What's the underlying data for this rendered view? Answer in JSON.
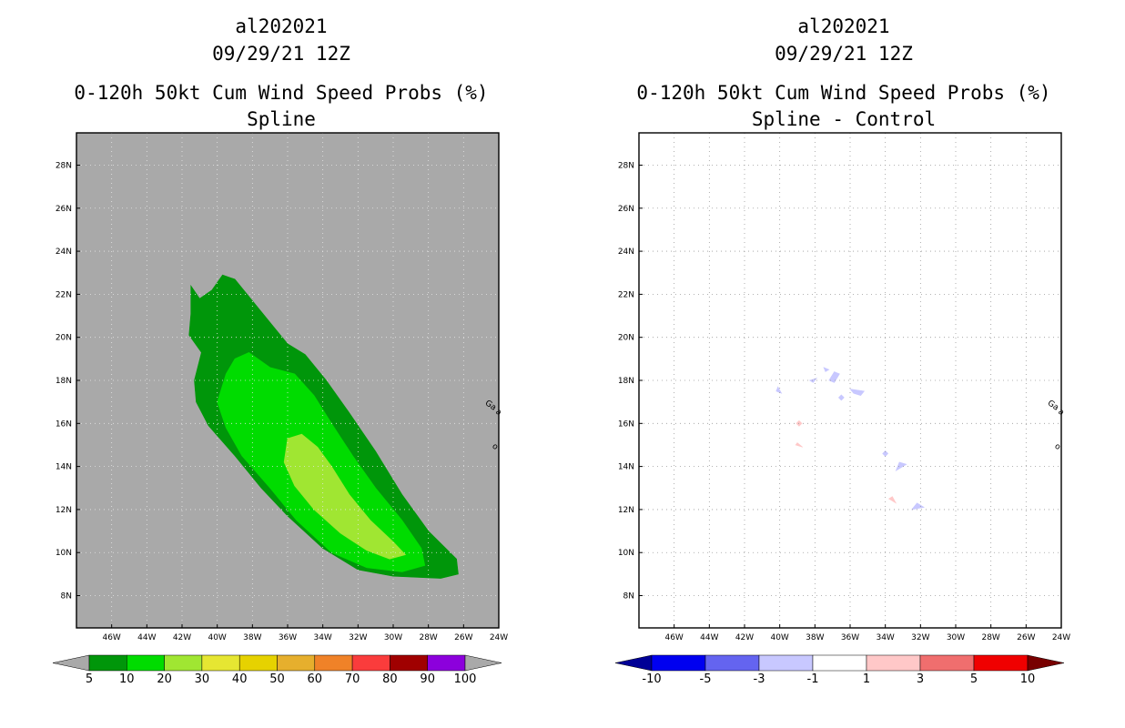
{
  "chart_data": [
    {
      "type": "heatmap",
      "title": [
        "al202021",
        "09/29/21 12Z",
        "0-120h 50kt Cum Wind Speed Probs (%)",
        "Spline"
      ],
      "xlabel": "",
      "ylabel": "",
      "xlim": [
        -48,
        -24
      ],
      "ylim": [
        6.5,
        29.5
      ],
      "x_ticks": [
        -46,
        -44,
        -42,
        -40,
        -38,
        -36,
        -34,
        -32,
        -30,
        -28,
        -26,
        -24
      ],
      "x_tick_labels": [
        "46W",
        "44W",
        "42W",
        "40W",
        "38W",
        "36W",
        "34W",
        "32W",
        "30W",
        "28W",
        "26W",
        "24W"
      ],
      "y_ticks": [
        8,
        10,
        12,
        14,
        16,
        18,
        20,
        22,
        24,
        26,
        28
      ],
      "y_tick_labels": [
        "8N",
        "10N",
        "12N",
        "14N",
        "16N",
        "18N",
        "20N",
        "22N",
        "24N",
        "26N",
        "28N"
      ],
      "background_color": "#a9a9a9",
      "contours": [
        {
          "level": "5-10",
          "color": "#00960a",
          "lonlat": [
            [
              -41.5,
              22.4
            ],
            [
              -41,
              21.8
            ],
            [
              -40.3,
              22.2
            ],
            [
              -39.7,
              22.9
            ],
            [
              -39,
              22.7
            ],
            [
              -38,
              21.7
            ],
            [
              -36.8,
              20.5
            ],
            [
              -36,
              19.7
            ],
            [
              -35,
              19.2
            ],
            [
              -33.8,
              18
            ],
            [
              -32.5,
              16.5
            ],
            [
              -31,
              14.7
            ],
            [
              -29.5,
              12.7
            ],
            [
              -28,
              11
            ],
            [
              -26.4,
              9.7
            ],
            [
              -26.3,
              9
            ],
            [
              -27.3,
              8.8
            ],
            [
              -30,
              8.9
            ],
            [
              -32,
              9.2
            ],
            [
              -34,
              10.2
            ],
            [
              -36,
              11.7
            ],
            [
              -37.5,
              13
            ],
            [
              -39,
              14.5
            ],
            [
              -40.5,
              15.9
            ],
            [
              -41.2,
              17
            ],
            [
              -41.3,
              18
            ],
            [
              -40.9,
              19.3
            ],
            [
              -41.6,
              20.1
            ],
            [
              -41.5,
              21.1
            ]
          ]
        },
        {
          "level": "10-20",
          "color": "#00dc00",
          "lonlat": [
            [
              -39,
              19
            ],
            [
              -38.2,
              19.3
            ],
            [
              -37,
              18.6
            ],
            [
              -35.6,
              18.3
            ],
            [
              -34.5,
              17.3
            ],
            [
              -33.5,
              16
            ],
            [
              -32.3,
              14.5
            ],
            [
              -31,
              13
            ],
            [
              -29.5,
              11.5
            ],
            [
              -28.4,
              10.2
            ],
            [
              -28.2,
              9.4
            ],
            [
              -29.5,
              9.1
            ],
            [
              -31.5,
              9.3
            ],
            [
              -33.5,
              10
            ],
            [
              -35.5,
              11.5
            ],
            [
              -37,
              13
            ],
            [
              -38.6,
              14.5
            ],
            [
              -39.5,
              15.8
            ],
            [
              -40,
              17
            ],
            [
              -39.5,
              18.3
            ]
          ]
        },
        {
          "level": "20-30",
          "color": "#a0e632",
          "lonlat": [
            [
              -36,
              15.3
            ],
            [
              -35.2,
              15.5
            ],
            [
              -34.3,
              14.9
            ],
            [
              -33.5,
              14
            ],
            [
              -32.5,
              12.7
            ],
            [
              -31.3,
              11.5
            ],
            [
              -30,
              10.5
            ],
            [
              -29.3,
              9.9
            ],
            [
              -30.2,
              9.7
            ],
            [
              -31.5,
              10.1
            ],
            [
              -33,
              10.9
            ],
            [
              -34.5,
              12
            ],
            [
              -35.6,
              13.1
            ],
            [
              -36.2,
              14.2
            ]
          ]
        }
      ],
      "station_markers": [
        {
          "lon": -24.8,
          "lat": 16.9,
          "label": "Ga"
        },
        {
          "lon": -24.2,
          "lat": 16.5,
          "label": "a"
        },
        {
          "lon": -24.4,
          "lat": 14.9,
          "label": "o"
        }
      ],
      "colorbar": {
        "colors": [
          "#00960a",
          "#00dc00",
          "#a0e632",
          "#e6e632",
          "#e6d200",
          "#e6af2d",
          "#f08228",
          "#fa3c3c",
          "#a00000",
          "#8c00dc"
        ],
        "under_color": "#a9a9a9",
        "over_color": "#a9a9a9",
        "tick_labels": [
          "5",
          "10",
          "20",
          "30",
          "40",
          "50",
          "60",
          "70",
          "80",
          "90",
          "100"
        ]
      }
    },
    {
      "type": "heatmap",
      "title": [
        "al202021",
        "09/29/21 12Z",
        "0-120h 50kt Cum Wind Speed Probs (%)",
        "Spline - Control"
      ],
      "xlabel": "",
      "ylabel": "",
      "xlim": [
        -48,
        -24
      ],
      "ylim": [
        6.5,
        29.5
      ],
      "x_ticks": [
        -46,
        -44,
        -42,
        -40,
        -38,
        -36,
        -34,
        -32,
        -30,
        -28,
        -26,
        -24
      ],
      "x_tick_labels": [
        "46W",
        "44W",
        "42W",
        "40W",
        "38W",
        "36W",
        "34W",
        "32W",
        "30W",
        "28W",
        "26W",
        "24W"
      ],
      "y_ticks": [
        8,
        10,
        12,
        14,
        16,
        18,
        20,
        22,
        24,
        26,
        28
      ],
      "y_tick_labels": [
        "8N",
        "10N",
        "12N",
        "14N",
        "16N",
        "18N",
        "20N",
        "22N",
        "24N",
        "26N",
        "28N"
      ],
      "background_color": "#ffffff",
      "grid": true,
      "contours": [
        {
          "level": "-3 to -1",
          "color": "#c8c8ff",
          "lonlat": [
            [
              -40.2,
              17.5
            ],
            [
              -39.9,
              17.4
            ],
            [
              -40.1,
              17.7
            ]
          ]
        },
        {
          "level": "-3 to -1",
          "color": "#c8c8ff",
          "lonlat": [
            [
              -38.3,
              18
            ],
            [
              -37.9,
              18.1
            ],
            [
              -38.1,
              17.9
            ]
          ]
        },
        {
          "level": "-3 to -1",
          "color": "#c8c8ff",
          "lonlat": [
            [
              -37.5,
              18.6
            ],
            [
              -37.2,
              18.5
            ],
            [
              -37.4,
              18.4
            ]
          ]
        },
        {
          "level": "-3 to -1",
          "color": "#c8c8ff",
          "lonlat": [
            [
              -37.2,
              18
            ],
            [
              -36.9,
              17.9
            ],
            [
              -36.6,
              18.3
            ],
            [
              -36.9,
              18.4
            ]
          ]
        },
        {
          "level": "-3 to -1",
          "color": "#c8c8ff",
          "lonlat": [
            [
              -36.5,
              17.2
            ],
            [
              -36.4,
              17
            ]
          ]
        },
        {
          "level": "-3 to -1",
          "color": "#c8c8ff",
          "lonlat": [
            [
              -36,
              17.6
            ],
            [
              -35.2,
              17.5
            ],
            [
              -35.4,
              17.3
            ],
            [
              -35.8,
              17.4
            ]
          ]
        },
        {
          "level": "-3 to -1",
          "color": "#c8c8ff",
          "lonlat": [
            [
              -34,
              14.6
            ],
            [
              -33.4,
              14.5
            ]
          ]
        },
        {
          "level": "-3 to -1",
          "color": "#c8c8ff",
          "lonlat": [
            [
              -33.2,
              14.2
            ],
            [
              -32.8,
              14.1
            ],
            [
              -33.4,
              13.8
            ]
          ]
        },
        {
          "level": "-3 to -1",
          "color": "#c8c8ff",
          "lonlat": [
            [
              -32.5,
              12
            ],
            [
              -31.8,
              12.1
            ],
            [
              -32.2,
              12.3
            ]
          ]
        },
        {
          "level": "1 to 3",
          "color": "#ffc8c8",
          "lonlat": [
            [
              -39.1,
              15
            ],
            [
              -38.7,
              14.9
            ],
            [
              -39,
              15.1
            ]
          ]
        },
        {
          "level": "1 to 3",
          "color": "#ffc8c8",
          "lonlat": [
            [
              -38.9,
              16
            ]
          ]
        },
        {
          "level": "1 to 3",
          "color": "#ffc8c8",
          "lonlat": [
            [
              -33.8,
              12.5
            ],
            [
              -33.4,
              12.3
            ],
            [
              -33.6,
              12.6
            ]
          ]
        }
      ],
      "station_markers": [
        {
          "lon": -24.8,
          "lat": 16.9,
          "label": "Ga"
        },
        {
          "lon": -24.2,
          "lat": 16.5,
          "label": "a"
        },
        {
          "lon": -24.4,
          "lat": 14.9,
          "label": "o"
        }
      ],
      "colorbar": {
        "colors": [
          "#0000f0",
          "#6464f0",
          "#c8c8ff",
          "#ffffff",
          "#ffc8c8",
          "#f06e6e",
          "#f00000"
        ],
        "under_color": "#000096",
        "over_color": "#780000",
        "tick_labels": [
          "-10",
          "-5",
          "-3",
          "-1",
          "1",
          "3",
          "5",
          "10"
        ]
      }
    }
  ]
}
